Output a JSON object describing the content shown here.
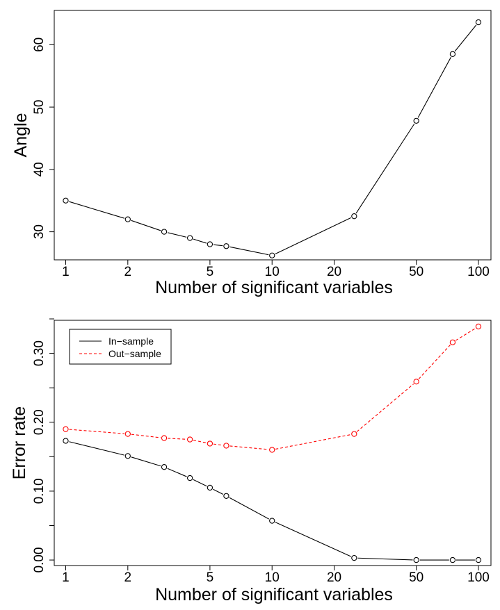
{
  "chart_data": [
    {
      "type": "line",
      "x_scale": "log",
      "xlabel": "Number of significant variables",
      "ylabel": "Angle",
      "x_ticks": [
        1,
        2,
        5,
        10,
        20,
        50,
        100
      ],
      "y_ticks": [
        30,
        40,
        50,
        60
      ],
      "xlim": [
        0.88,
        115
      ],
      "ylim": [
        25.5,
        65.5
      ],
      "legend": null,
      "series": [
        {
          "color": "#000000",
          "style": "solid",
          "x": [
            1,
            2,
            3,
            4,
            5,
            6,
            10,
            25,
            50,
            75,
            100
          ],
          "y": [
            35,
            32,
            30,
            29,
            28,
            27.7,
            26.2,
            32.5,
            47.8,
            58.5,
            63.6
          ]
        }
      ]
    },
    {
      "type": "line",
      "x_scale": "log",
      "xlabel": "Number of significant variables",
      "ylabel": "Error rate",
      "x_ticks": [
        1,
        2,
        5,
        10,
        20,
        50,
        100
      ],
      "y_ticks_labeled": [
        "0.00",
        "0.10",
        "0.20",
        "0.30"
      ],
      "y_minor_ticks": [
        0.05,
        0.15,
        0.25,
        0.35
      ],
      "xlim": [
        0.88,
        115
      ],
      "ylim": [
        -0.008,
        0.348
      ],
      "legend": "top-left",
      "series": [
        {
          "name": "In−sample",
          "color": "#000000",
          "style": "solid",
          "x": [
            1,
            2,
            3,
            4,
            5,
            6,
            10,
            25,
            50,
            75,
            100
          ],
          "y": [
            0.173,
            0.151,
            0.135,
            0.119,
            0.105,
            0.093,
            0.057,
            0.003,
            0.0,
            0.0,
            0.0
          ]
        },
        {
          "name": "Out−sample",
          "color": "#ff0000",
          "style": "dashed",
          "x": [
            1,
            2,
            3,
            4,
            5,
            6,
            10,
            25,
            50,
            75,
            100
          ],
          "y": [
            0.19,
            0.183,
            0.177,
            0.175,
            0.169,
            0.166,
            0.16,
            0.183,
            0.259,
            0.316,
            0.339
          ]
        }
      ]
    }
  ]
}
